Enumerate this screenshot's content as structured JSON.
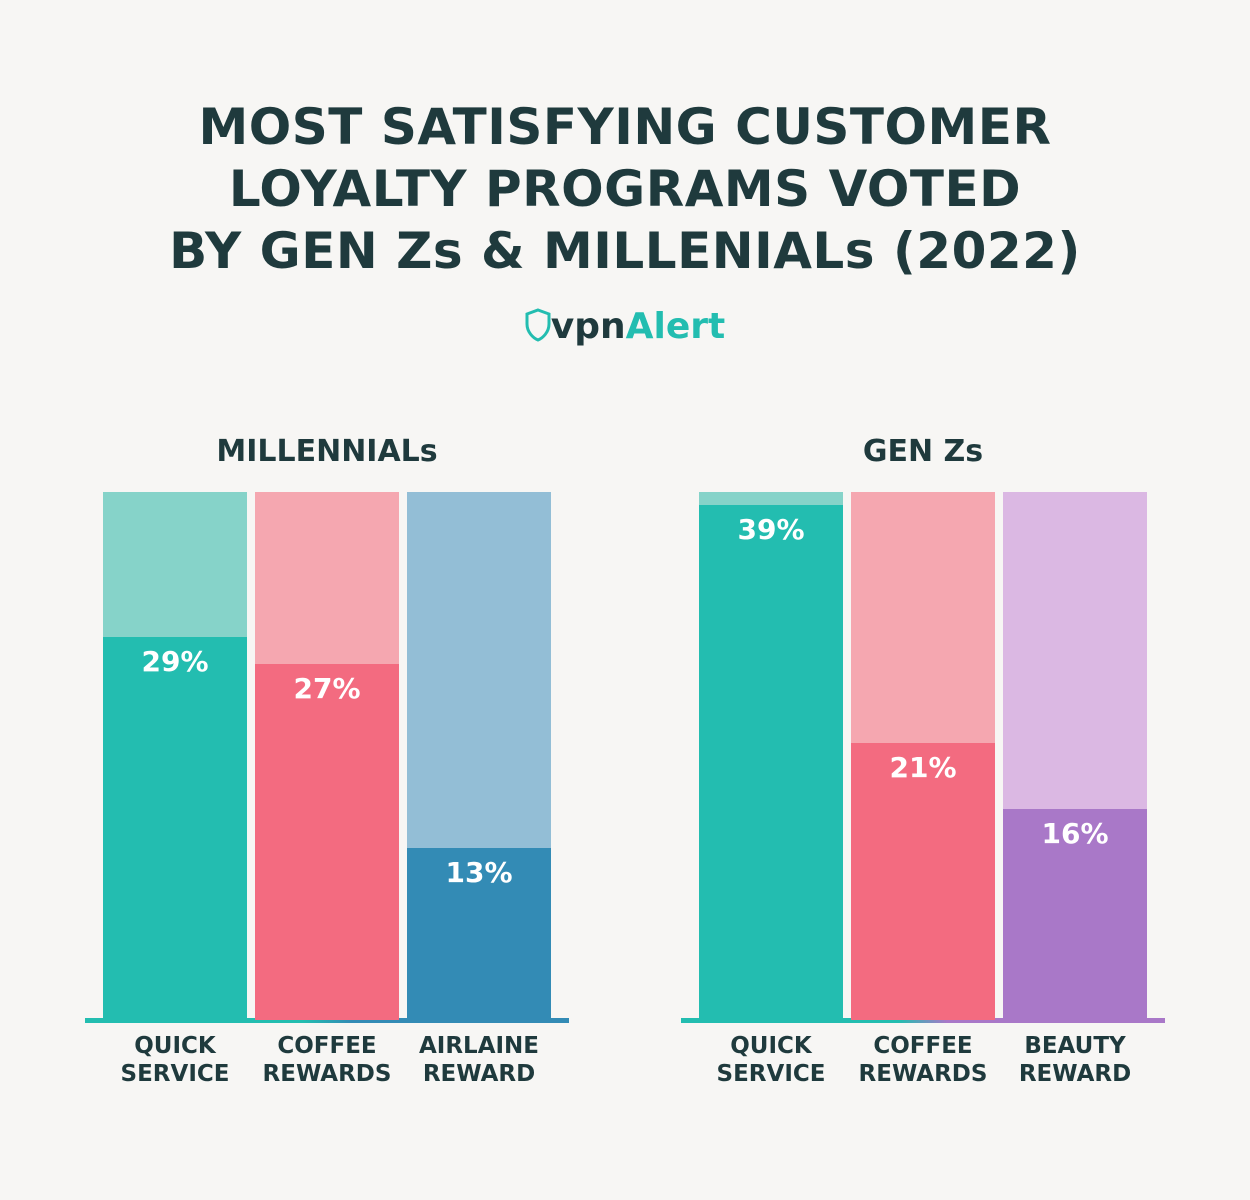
{
  "title": [
    "MOST SATISFYING CUSTOMER",
    "LOYALTY PROGRAMS VOTED",
    "BY GEN Zs & MILLENIALs (2022)"
  ],
  "logo": [
    "vpn",
    "Alert"
  ],
  "chart_data": [
    {
      "type": "bar",
      "title": "MILLENNIALs",
      "categories": [
        "QUICK SERVICE",
        "COFFEE REWARDS",
        "AIRLAINE REWARD"
      ],
      "values": [
        29,
        27,
        13
      ],
      "value_labels": [
        "29%",
        "27%",
        "13%"
      ],
      "colors": [
        "#23bdb0",
        "#f36b80",
        "#338bb5"
      ],
      "track_colors": [
        "#86d3c9",
        "#f5a7b0",
        "#93bed6"
      ],
      "ylim": [
        0,
        40
      ]
    },
    {
      "type": "bar",
      "title": "GEN Zs",
      "categories": [
        "QUICK SERVICE",
        "COFFEE REWARDS",
        "BEAUTY REWARD"
      ],
      "values": [
        39,
        21,
        16
      ],
      "value_labels": [
        "39%",
        "21%",
        "16%"
      ],
      "colors": [
        "#23bdb0",
        "#f36b80",
        "#a978c8"
      ],
      "track_colors": [
        "#86d3c9",
        "#f5a7b0",
        "#dbb8e3"
      ],
      "ylim": [
        0,
        40
      ]
    }
  ]
}
